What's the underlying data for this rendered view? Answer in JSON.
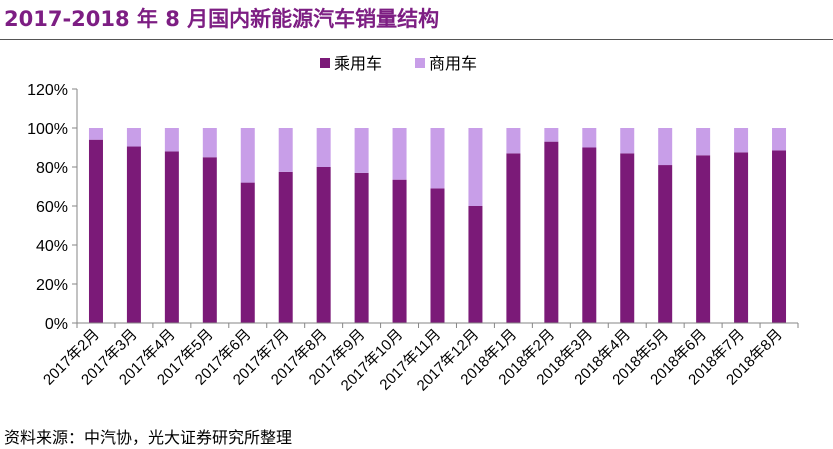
{
  "header": {
    "title": "2017-2018 年 8 月国内新能源汽车销量结构"
  },
  "footer": {
    "source": "资料来源：中汽协，光大证券研究所整理"
  },
  "chart_data": {
    "type": "bar",
    "stacked": true,
    "title": "2017-2018 年 8 月国内新能源汽车销量结构",
    "xlabel": "",
    "ylabel": "",
    "ylim": [
      0,
      120
    ],
    "yticks": [
      "0%",
      "20%",
      "40%",
      "60%",
      "80%",
      "100%",
      "120%"
    ],
    "legend_position": "top-center",
    "categories": [
      "2017年2月",
      "2017年3月",
      "2017年4月",
      "2017年5月",
      "2017年6月",
      "2017年7月",
      "2017年8月",
      "2017年9月",
      "2017年10月",
      "2017年11月",
      "2017年12月",
      "2018年1月",
      "2018年2月",
      "2018年3月",
      "2018年4月",
      "2018年5月",
      "2018年6月",
      "2018年7月",
      "2018年8月"
    ],
    "series": [
      {
        "name": "乘用车",
        "color": "#7b1a78",
        "values": [
          94,
          90.5,
          88,
          85,
          72,
          77.5,
          80,
          77,
          73.5,
          69,
          60,
          87,
          93,
          90,
          87,
          81,
          86,
          87.5,
          88.5
        ]
      },
      {
        "name": "商用车",
        "color": "#c89ee8",
        "values": [
          6,
          9.5,
          12,
          15,
          28,
          22.5,
          20,
          23,
          26.5,
          31,
          40,
          13,
          7,
          10,
          13,
          19,
          14,
          12.5,
          11.5
        ]
      }
    ]
  }
}
